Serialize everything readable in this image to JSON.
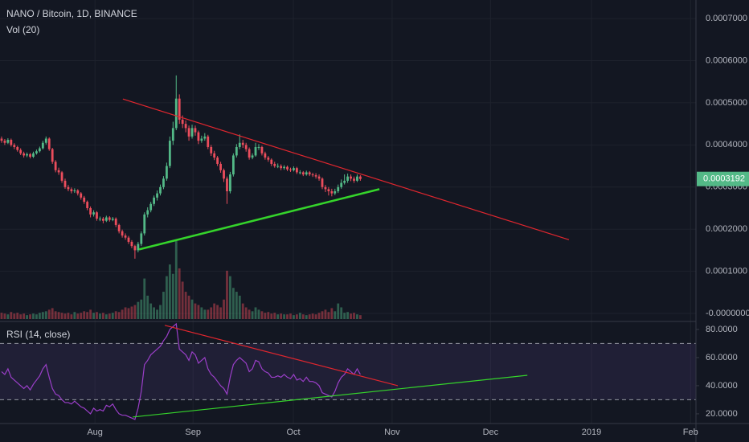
{
  "chart_data": [
    {
      "type": "candlestick",
      "title": "NANO / Bitcoin, 1D, BINANCE",
      "volume_title": "Vol (20)",
      "x": [
        1,
        2,
        3,
        4,
        5,
        6,
        7,
        8,
        9,
        10,
        11,
        12,
        13,
        14,
        15,
        16,
        17,
        18,
        19,
        20,
        21,
        22,
        23,
        24,
        25,
        26,
        27,
        28,
        29,
        30,
        31,
        32,
        33,
        34,
        35,
        36,
        37,
        38,
        39,
        40,
        41,
        42,
        43,
        44,
        45,
        46,
        47,
        48,
        49,
        50,
        51,
        52,
        53,
        54,
        55,
        56,
        57,
        58,
        59,
        60,
        61,
        62,
        63,
        64,
        65,
        66,
        67,
        68,
        69,
        70,
        71,
        72,
        73,
        74,
        75,
        76,
        77,
        78,
        79,
        80,
        81,
        82,
        83,
        84,
        85,
        86,
        87,
        88,
        89,
        90,
        91,
        92,
        93,
        94,
        95,
        96,
        97,
        98,
        99,
        100,
        101,
        102,
        103,
        104,
        105,
        106,
        107,
        108,
        109,
        110,
        111,
        112,
        113,
        114
      ],
      "open": [
        0.000415,
        0.00041,
        0.000405,
        0.000412,
        0.0004,
        0.000395,
        0.000388,
        0.00038,
        0.000375,
        0.000378,
        0.000372,
        0.00038,
        0.000385,
        0.000392,
        0.000405,
        0.000415,
        0.00039,
        0.00036,
        0.00034,
        0.000335,
        0.000315,
        0.0003,
        0.000295,
        0.00029,
        0.000292,
        0.000285,
        0.000275,
        0.000265,
        0.00025,
        0.000235,
        0.00024,
        0.000225,
        0.000225,
        0.00022,
        0.000228,
        0.000222,
        0.000225,
        0.00021,
        0.000195,
        0.000185,
        0.00018,
        0.00017,
        0.00016,
        0.00015,
        0.000165,
        0.00019,
        0.000235,
        0.000245,
        0.00026,
        0.000275,
        0.000285,
        0.0003,
        0.00032,
        0.00035,
        0.00041,
        0.00044,
        0.00051,
        0.00046,
        0.00045,
        0.00044,
        0.00042,
        0.00044,
        0.00043,
        0.00041,
        0.000415,
        0.00042,
        0.000395,
        0.00038,
        0.00037,
        0.000355,
        0.00034,
        0.00032,
        0.00029,
        0.00033,
        0.000375,
        0.000395,
        0.000405,
        0.0004,
        0.00039,
        0.00037,
        0.000375,
        0.000395,
        0.000395,
        0.00038,
        0.00037,
        0.000365,
        0.000355,
        0.00035,
        0.00035,
        0.000345,
        0.000348,
        0.000342,
        0.00034,
        0.000345,
        0.000335,
        0.000335,
        0.00033,
        0.000335,
        0.00033,
        0.000328,
        0.000325,
        0.00032,
        0.0003,
        0.000295,
        0.00029,
        0.000285,
        0.00029,
        0.0003,
        0.00031,
        0.000315,
        0.000325,
        0.00032,
        0.000315,
        0.000325
      ],
      "high": [
        0.00042,
        0.000414,
        0.000416,
        0.000415,
        0.000404,
        0.000398,
        0.000392,
        0.000384,
        0.000382,
        0.000381,
        0.000384,
        0.000389,
        0.000396,
        0.00041,
        0.00042,
        0.000418,
        0.000393,
        0.000364,
        0.000346,
        0.000338,
        0.00032,
        0.000305,
        0.000299,
        0.000297,
        0.000295,
        0.000288,
        0.000279,
        0.000268,
        0.000254,
        0.000245,
        0.000243,
        0.00023,
        0.000229,
        0.000232,
        0.000231,
        0.000229,
        0.000228,
        0.000213,
        0.000199,
        0.00019,
        0.000184,
        0.000174,
        0.000163,
        0.00017,
        0.000195,
        0.00024,
        0.000252,
        0.000265,
        0.00028,
        0.000292,
        0.000306,
        0.000326,
        0.000358,
        0.00042,
        0.000455,
        0.000565,
        0.00052,
        0.00047,
        0.000458,
        0.000446,
        0.000448,
        0.000446,
        0.000434,
        0.000422,
        0.000428,
        0.000424,
        0.0004,
        0.000386,
        0.000374,
        0.00036,
        0.000344,
        0.000325,
        0.000336,
        0.00038,
        0.000402,
        0.000425,
        0.000412,
        0.000405,
        0.000394,
        0.00038,
        0.000405,
        0.000402,
        0.000398,
        0.000384,
        0.000374,
        0.000368,
        0.00036,
        0.000356,
        0.000354,
        0.000352,
        0.000351,
        0.000346,
        0.000349,
        0.000348,
        0.00034,
        0.000338,
        0.000339,
        0.000338,
        0.000334,
        0.000333,
        0.00033,
        0.000323,
        0.000305,
        0.0003,
        0.000296,
        0.000296,
        0.000306,
        0.000318,
        0.00033,
        0.000332,
        0.00033,
        0.000325,
        0.00033,
        0.000328
      ],
      "low": [
        0.000405,
        0.0004,
        0.000402,
        0.000396,
        0.00039,
        0.000384,
        0.000376,
        0.00037,
        0.000371,
        0.000368,
        0.000369,
        0.000377,
        0.000382,
        0.000389,
        0.000401,
        0.000386,
        0.000355,
        0.000335,
        0.000329,
        0.00031,
        0.000296,
        0.00029,
        0.000285,
        0.000286,
        0.00028,
        0.00027,
        0.00026,
        0.000245,
        0.000228,
        0.00023,
        0.00022,
        0.000219,
        0.000214,
        0.000217,
        0.000218,
        0.000219,
        0.000205,
        0.00019,
        0.00018,
        0.000175,
        0.000165,
        0.000155,
        0.00013,
        0.000145,
        0.00016,
        0.000185,
        0.000228,
        0.00024,
        0.000255,
        0.000268,
        0.00028,
        0.000295,
        0.000315,
        0.000345,
        0.0004,
        0.000435,
        0.00045,
        0.00044,
        0.00043,
        0.00041,
        0.000415,
        0.000422,
        0.000402,
        0.000405,
        0.00041,
        0.00039,
        0.000374,
        0.000364,
        0.00035,
        0.000334,
        0.000312,
        0.00026,
        0.000285,
        0.000325,
        0.00037,
        0.00039,
        0.000393,
        0.000384,
        0.000365,
        0.000366,
        0.000372,
        0.000388,
        0.000375,
        0.000365,
        0.00036,
        0.00035,
        0.000346,
        0.000345,
        0.00034,
        0.000341,
        0.000338,
        0.000336,
        0.000337,
        0.000331,
        0.00033,
        0.000326,
        0.000327,
        0.000326,
        0.000324,
        0.00032,
        0.000315,
        0.000295,
        0.000288,
        0.00028,
        0.000278,
        0.000281,
        0.000286,
        0.000296,
        0.000306,
        0.00031,
        0.000314,
        0.00031,
        0.000312,
        0.000315
      ],
      "close": [
        0.00041,
        0.000405,
        0.000412,
        0.0004,
        0.000395,
        0.000388,
        0.00038,
        0.000375,
        0.000378,
        0.000372,
        0.00038,
        0.000385,
        0.000392,
        0.000405,
        0.000415,
        0.00039,
        0.00036,
        0.00034,
        0.000335,
        0.000315,
        0.0003,
        0.000295,
        0.00029,
        0.000292,
        0.000285,
        0.000275,
        0.000265,
        0.00025,
        0.000235,
        0.00024,
        0.000225,
        0.000225,
        0.00022,
        0.000228,
        0.000222,
        0.000225,
        0.00021,
        0.000195,
        0.000185,
        0.00018,
        0.00017,
        0.00016,
        0.00015,
        0.000165,
        0.00019,
        0.000235,
        0.000245,
        0.00026,
        0.000275,
        0.000285,
        0.0003,
        0.00032,
        0.00035,
        0.00041,
        0.00044,
        0.00051,
        0.00046,
        0.00045,
        0.00044,
        0.00042,
        0.00044,
        0.00043,
        0.00041,
        0.000415,
        0.00042,
        0.000395,
        0.00038,
        0.00037,
        0.000355,
        0.00034,
        0.00032,
        0.00029,
        0.00033,
        0.000375,
        0.000395,
        0.000405,
        0.0004,
        0.00039,
        0.00037,
        0.000375,
        0.000395,
        0.000395,
        0.00038,
        0.00037,
        0.000365,
        0.000355,
        0.00035,
        0.00035,
        0.000345,
        0.000348,
        0.000342,
        0.00034,
        0.000345,
        0.000335,
        0.000335,
        0.00033,
        0.000335,
        0.00033,
        0.000328,
        0.000325,
        0.00032,
        0.0003,
        0.000295,
        0.00029,
        0.000285,
        0.00029,
        0.0003,
        0.00031,
        0.000315,
        0.000325,
        0.00032,
        0.000315,
        0.000325,
        0.0003192
      ],
      "volume": [
        8,
        7,
        6,
        9,
        7,
        8,
        6,
        7,
        5,
        6,
        7,
        6,
        8,
        9,
        10,
        12,
        14,
        10,
        9,
        8,
        7,
        8,
        6,
        9,
        7,
        8,
        10,
        9,
        12,
        8,
        9,
        7,
        8,
        6,
        7,
        8,
        10,
        9,
        12,
        15,
        14,
        16,
        18,
        22,
        25,
        52,
        30,
        20,
        15,
        12,
        18,
        35,
        55,
        70,
        58,
        100,
        65,
        48,
        35,
        30,
        25,
        20,
        18,
        15,
        12,
        12,
        15,
        20,
        18,
        15,
        25,
        62,
        55,
        40,
        35,
        30,
        20,
        15,
        12,
        10,
        15,
        12,
        10,
        8,
        9,
        7,
        8,
        6,
        7,
        6,
        6,
        7,
        5,
        6,
        8,
        6,
        5,
        6,
        7,
        6,
        8,
        10,
        12,
        9,
        14,
        10,
        20,
        15,
        8,
        9,
        7,
        8,
        6,
        5
      ],
      "up_color": "#53b987",
      "down_color": "#eb4d5c",
      "xlim": [
        0.5,
        219.7
      ],
      "xticks": [
        {
          "value": 30.4,
          "label": "Aug"
        },
        {
          "value": 61.3,
          "label": "Sep"
        },
        {
          "value": 92.9,
          "label": "Oct"
        },
        {
          "value": 124,
          "label": "Nov"
        },
        {
          "value": 155,
          "label": "Dec"
        },
        {
          "value": 186.8,
          "label": "2019"
        },
        {
          "value": 218,
          "label": "Feb"
        }
      ],
      "ylim": [
        -1.9e-05,
        0.000744
      ],
      "yticks": [
        {
          "value": 0,
          "label": "-0.0000000"
        },
        {
          "value": 0.0001,
          "label": "0.0001000"
        },
        {
          "value": 0.0002,
          "label": "0.0002000"
        },
        {
          "value": 0.0003,
          "label": "0.0003000"
        },
        {
          "value": 0.0004,
          "label": "0.0004000"
        },
        {
          "value": 0.0005,
          "label": "0.0005000"
        },
        {
          "value": 0.0006,
          "label": "0.0006000"
        },
        {
          "value": 0.0007,
          "label": "0.0007000"
        }
      ],
      "grid": true,
      "trendlines": [
        {
          "color": "#e0262e",
          "x": [
            39.2,
            179.7
          ],
          "y": [
            0.000509,
            0.000175
          ]
        },
        {
          "color": "#35d42b",
          "x": [
            44.3,
            120
          ],
          "y": [
            0.000152,
            0.000295
          ]
        }
      ]
    },
    {
      "type": "line",
      "title": "RSI (14, close)",
      "color": "#9b3fc9",
      "values": [
        50,
        48,
        52,
        46,
        44,
        42,
        40,
        38,
        40,
        37,
        41,
        44,
        47,
        52,
        55,
        46,
        38,
        34,
        33,
        30,
        28,
        28,
        27,
        29,
        27,
        25,
        24,
        22,
        20,
        24,
        22,
        23,
        22,
        26,
        25,
        27,
        23,
        20,
        19,
        19,
        18,
        17,
        16,
        24,
        36,
        55,
        58,
        62,
        64,
        66,
        68,
        72,
        75,
        80,
        82,
        84,
        66,
        64,
        62,
        58,
        64,
        62,
        56,
        58,
        60,
        52,
        48,
        46,
        43,
        40,
        38,
        34,
        46,
        55,
        58,
        60,
        58,
        56,
        50,
        52,
        58,
        57,
        52,
        50,
        49,
        46,
        46,
        47,
        46,
        48,
        46,
        45,
        48,
        44,
        45,
        43,
        46,
        43,
        43,
        42,
        40,
        35,
        34,
        33,
        32,
        36,
        42,
        46,
        48,
        52,
        50,
        48,
        52,
        48
      ],
      "ylim": [
        13.1,
        85.1
      ],
      "yticks": [
        {
          "value": 20,
          "label": "20.0000"
        },
        {
          "value": 40,
          "label": "40.0000"
        },
        {
          "value": 60,
          "label": "60.0000"
        },
        {
          "value": 80,
          "label": "80.0000"
        }
      ],
      "bands": [
        30,
        70
      ],
      "band_color": "#7e57c2",
      "trendlines": [
        {
          "color": "#e0262e",
          "x": [
            52.4,
            125.8
          ],
          "y": [
            82.9,
            40
          ]
        },
        {
          "color": "#35d42b",
          "x": [
            42.3,
            166.6
          ],
          "y": [
            17.7,
            47.4
          ]
        }
      ]
    }
  ]
}
